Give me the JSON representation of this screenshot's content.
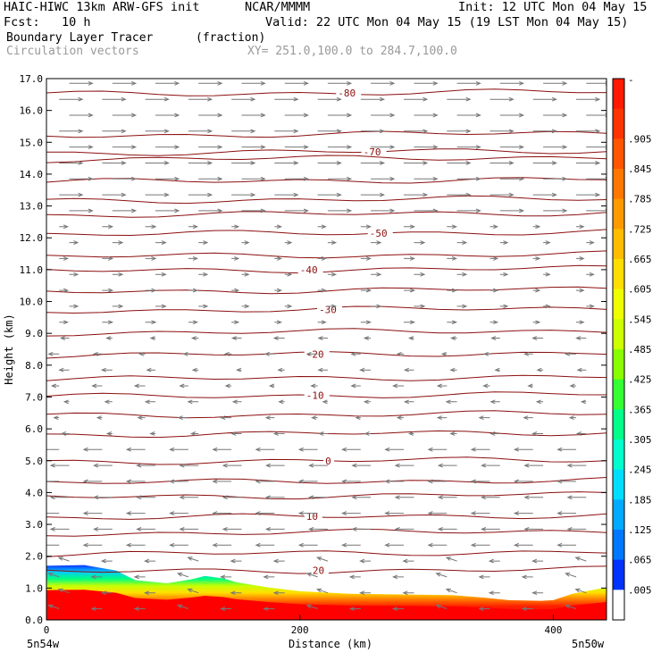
{
  "header": {
    "model": "HAIC-HIWC 13km ARW-GFS init",
    "org": "NCAR/MMMM",
    "init": "Init: 12 UTC Mon 04 May 15",
    "fcst": "Fcst:   10 h",
    "valid": "Valid: 22 UTC Mon 04 May 15 (19 LST Mon 04 May 15)",
    "field": "Boundary Layer Tracer",
    "units": "(fraction)",
    "vectors": "Circulation vectors",
    "xy": "XY= 251.0,100.0 to 284.7,100.0"
  },
  "chart_data": {
    "type": "cross-section",
    "ylabel": "Height (km)",
    "xlabel": "Distance (km)",
    "ylim": [
      0,
      17
    ],
    "xlim": [
      0,
      442
    ],
    "yticks": [
      "0.0",
      "1.0",
      "2.0",
      "3.0",
      "4.0",
      "5.0",
      "6.0",
      "7.0",
      "8.0",
      "9.0",
      "10.0",
      "11.0",
      "12.0",
      "13.0",
      "14.0",
      "15.0",
      "16.0",
      "17.0"
    ],
    "xticks": [
      {
        "x": 0,
        "label": "0"
      },
      {
        "x": 200,
        "label": "200"
      },
      {
        "x": 400,
        "label": "400"
      }
    ],
    "corner_labels": {
      "left": "5n54w",
      "right": "5n50w"
    },
    "tracer_top_km": [
      [
        0,
        1.7
      ],
      [
        30,
        1.72
      ],
      [
        55,
        1.55
      ],
      [
        70,
        1.25
      ],
      [
        95,
        1.15
      ],
      [
        115,
        1.28
      ],
      [
        125,
        1.38
      ],
      [
        140,
        1.3
      ],
      [
        150,
        1.18
      ],
      [
        175,
        1.02
      ],
      [
        200,
        0.9
      ],
      [
        240,
        0.82
      ],
      [
        280,
        0.8
      ],
      [
        320,
        0.78
      ],
      [
        345,
        0.7
      ],
      [
        365,
        0.62
      ],
      [
        390,
        0.6
      ],
      [
        400,
        0.62
      ],
      [
        415,
        0.82
      ],
      [
        442,
        1.02
      ]
    ],
    "isotherms": [
      {
        "label": "-80",
        "z": 16.55,
        "lx": 230
      },
      {
        "label": "-70",
        "z": 14.7,
        "lx": 250
      },
      {
        "label": "-50",
        "z": 12.15,
        "lx": 255
      },
      {
        "label": "-40",
        "z": 11.0,
        "lx": 200
      },
      {
        "label": "-30",
        "z": 9.75,
        "lx": 215
      },
      {
        "label": "-20",
        "z": 8.35,
        "lx": 205
      },
      {
        "label": "-10",
        "z": 7.05,
        "lx": 205
      },
      {
        "label": "0",
        "z": 5.0,
        "lx": 220
      },
      {
        "label": "10",
        "z": 3.25,
        "lx": 205
      },
      {
        "label": "20",
        "z": 1.55,
        "lx": 210
      },
      {
        "label": "",
        "z": 15.25,
        "lx": 0
      },
      {
        "label": "",
        "z": 14.5,
        "lx": 0
      },
      {
        "label": "",
        "z": 13.8,
        "lx": 0
      },
      {
        "label": "",
        "z": 13.2,
        "lx": 0
      },
      {
        "label": "",
        "z": 12.75,
        "lx": 0
      },
      {
        "label": "",
        "z": 11.45,
        "lx": 0
      },
      {
        "label": "",
        "z": 10.35,
        "lx": 0
      },
      {
        "label": "",
        "z": 9.05,
        "lx": 0
      },
      {
        "label": "",
        "z": 7.6,
        "lx": 0
      },
      {
        "label": "",
        "z": 6.45,
        "lx": 0
      },
      {
        "label": "",
        "z": 5.85,
        "lx": 0
      },
      {
        "label": "",
        "z": 4.35,
        "lx": 0
      },
      {
        "label": "",
        "z": 3.9,
        "lx": 0
      },
      {
        "label": "",
        "z": 2.75,
        "lx": 0
      },
      {
        "label": "",
        "z": 2.1,
        "lx": 0
      }
    ],
    "colorbar": {
      "labels": [
        "-",
        ".905",
        ".845",
        ".785",
        ".725",
        ".665",
        ".605",
        ".545",
        ".485",
        ".425",
        ".365",
        ".305",
        ".245",
        ".185",
        ".125",
        ".065",
        ".005"
      ],
      "colors": [
        "#ff1a00",
        "#ff3300",
        "#ff5500",
        "#ff7700",
        "#ff9900",
        "#ffbb00",
        "#ffdd00",
        "#eeff00",
        "#ccff00",
        "#88ff00",
        "#33ff33",
        "#00ff88",
        "#00ffcc",
        "#00ddff",
        "#00aaff",
        "#0077ff",
        "#0033ff",
        "#ffffff"
      ]
    }
  }
}
